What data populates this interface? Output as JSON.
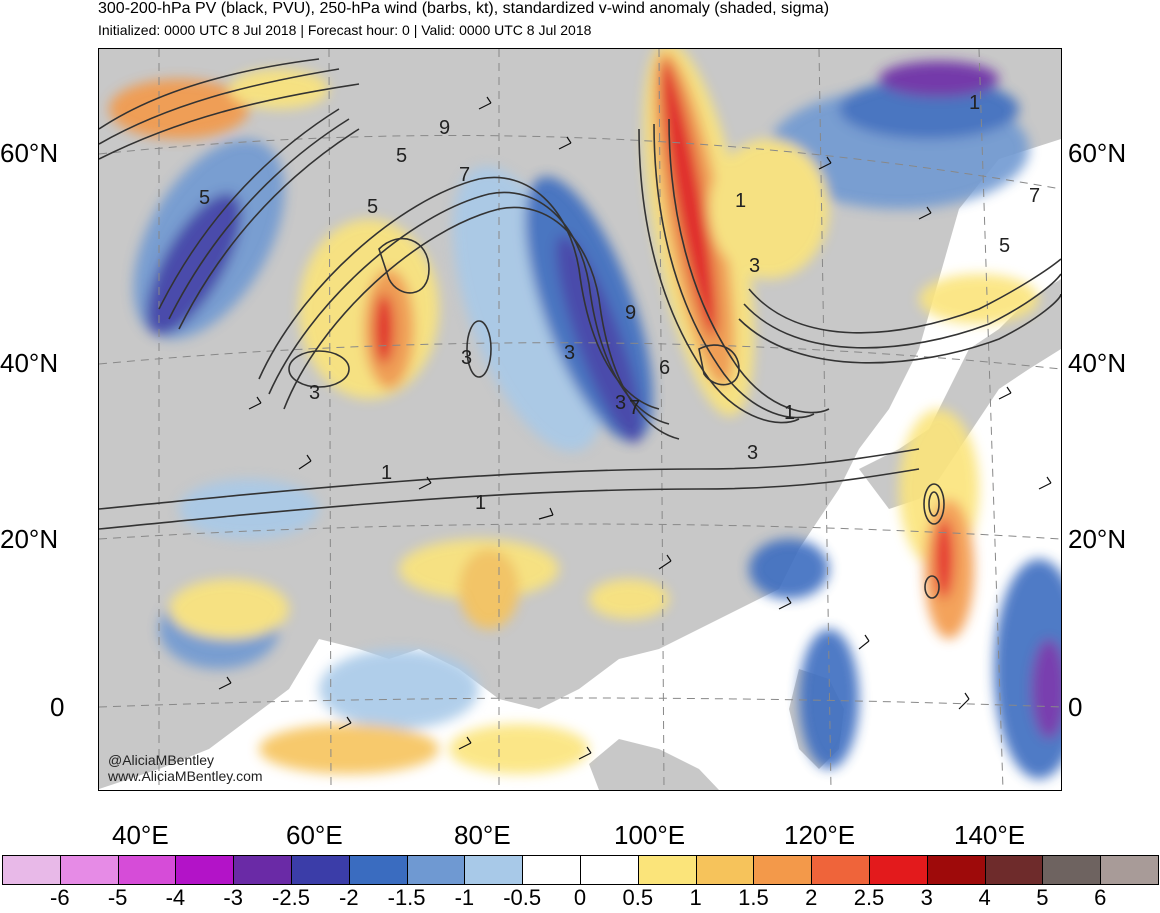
{
  "title": "300-200-hPa PV (black, PVU), 250-hPa wind (barbs, kt), standardized v-wind anomaly (shaded, sigma)",
  "subtitle": "Initialized: 0000 UTC 8 Jul 2018 | Forecast hour: 0 | Valid: 0000 UTC 8 Jul 2018",
  "lat_labels": [
    "60°N",
    "40°N",
    "20°N",
    "0"
  ],
  "lon_labels": [
    "40°E",
    "60°E",
    "80°E",
    "100°E",
    "120°E",
    "140°E"
  ],
  "contour_labels": [
    "9",
    "5",
    "7",
    "5",
    "5",
    "3",
    "3",
    "3",
    "9",
    "3",
    "7",
    "1",
    "3",
    "1",
    "5",
    "7",
    "6",
    "1",
    "3",
    "1",
    "1"
  ],
  "watermark": [
    "@AliciaMBentley",
    "www.AliciaMBentley.com"
  ],
  "colorbar": {
    "labels": [
      "-6",
      "-5",
      "-4",
      "-3",
      "-2.5",
      "-2",
      "-1.5",
      "-1",
      "-0.5",
      "0",
      "0.5",
      "1",
      "1.5",
      "2",
      "2.5",
      "3",
      "4",
      "5",
      "6"
    ],
    "colors": [
      "#e8b9e8",
      "#e68be6",
      "#d64cd8",
      "#b313c8",
      "#6a2aa6",
      "#3b3da8",
      "#3a6cc0",
      "#6f99d2",
      "#a8c9e8",
      "#ffffff",
      "#ffffff",
      "#fbe47a",
      "#f6c35b",
      "#f3994a",
      "#ef643a",
      "#e31a1c",
      "#9e0a0a",
      "#6e2b2b",
      "#6e6360",
      "#a89b98"
    ]
  },
  "colors": {
    "land": "#c8c8c8",
    "contour": "#333333"
  }
}
